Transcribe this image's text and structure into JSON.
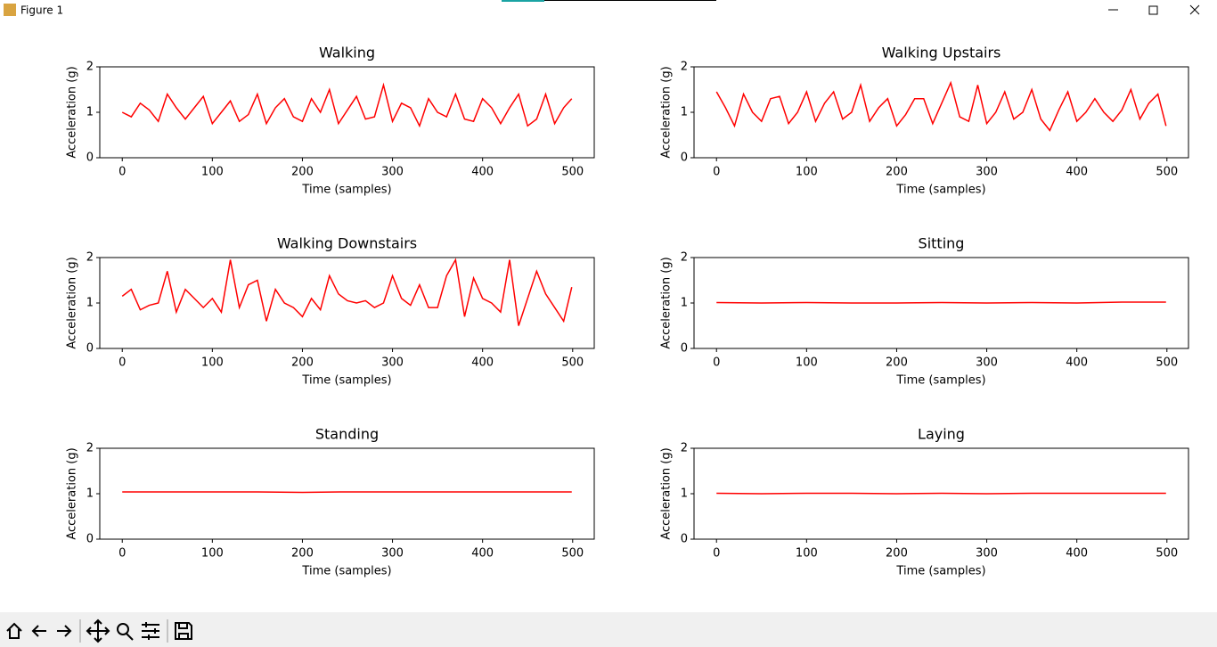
{
  "window": {
    "title": "Figure 1"
  },
  "chart_data": [
    {
      "type": "line",
      "title": "Walking",
      "xlabel": "Time (samples)",
      "ylabel": "Acceleration (g)",
      "color": "#ff0000",
      "x": [
        0,
        10,
        20,
        30,
        40,
        50,
        60,
        70,
        80,
        90,
        100,
        110,
        120,
        130,
        140,
        150,
        160,
        170,
        180,
        190,
        200,
        210,
        220,
        230,
        240,
        250,
        260,
        270,
        280,
        290,
        300,
        310,
        320,
        330,
        340,
        350,
        360,
        370,
        380,
        390,
        400,
        410,
        420,
        430,
        440,
        450,
        460,
        470,
        480,
        490,
        499
      ],
      "values": [
        1.0,
        0.9,
        1.2,
        1.05,
        0.8,
        1.4,
        1.1,
        0.85,
        1.1,
        1.35,
        0.75,
        1.0,
        1.25,
        0.8,
        0.95,
        1.4,
        0.75,
        1.1,
        1.3,
        0.9,
        0.8,
        1.3,
        1.0,
        1.5,
        0.75,
        1.05,
        1.35,
        0.85,
        0.9,
        1.6,
        0.8,
        1.2,
        1.1,
        0.7,
        1.3,
        1.0,
        0.9,
        1.4,
        0.85,
        0.8,
        1.3,
        1.1,
        0.75,
        1.1,
        1.4,
        0.7,
        0.85,
        1.4,
        0.75,
        1.1,
        1.3
      ],
      "xlim": [
        -24.95,
        523.95
      ],
      "ylim": [
        0,
        2
      ],
      "xticks": [
        0,
        100,
        200,
        300,
        400,
        500
      ],
      "yticks": [
        0,
        1,
        2
      ]
    },
    {
      "type": "line",
      "title": "Walking Upstairs",
      "xlabel": "Time (samples)",
      "ylabel": "Acceleration (g)",
      "color": "#ff0000",
      "x": [
        0,
        10,
        20,
        30,
        40,
        50,
        60,
        70,
        80,
        90,
        100,
        110,
        120,
        130,
        140,
        150,
        160,
        170,
        180,
        190,
        200,
        210,
        220,
        230,
        240,
        250,
        260,
        270,
        280,
        290,
        300,
        310,
        320,
        330,
        340,
        350,
        360,
        370,
        380,
        390,
        400,
        410,
        420,
        430,
        440,
        450,
        460,
        470,
        480,
        490,
        499
      ],
      "values": [
        1.45,
        1.1,
        0.7,
        1.4,
        1.0,
        0.8,
        1.3,
        1.35,
        0.75,
        1.0,
        1.45,
        0.8,
        1.2,
        1.45,
        0.85,
        1.0,
        1.6,
        0.8,
        1.1,
        1.3,
        0.7,
        0.95,
        1.3,
        1.3,
        0.75,
        1.2,
        1.65,
        0.9,
        0.8,
        1.6,
        0.75,
        1.0,
        1.45,
        0.85,
        1.0,
        1.5,
        0.85,
        0.6,
        1.05,
        1.45,
        0.8,
        1.0,
        1.3,
        1.0,
        0.8,
        1.05,
        1.5,
        0.85,
        1.2,
        1.4,
        0.7
      ],
      "xlim": [
        -24.95,
        523.95
      ],
      "ylim": [
        0,
        2
      ],
      "xticks": [
        0,
        100,
        200,
        300,
        400,
        500
      ],
      "yticks": [
        0,
        1,
        2
      ]
    },
    {
      "type": "line",
      "title": "Walking Downstairs",
      "xlabel": "Time (samples)",
      "ylabel": "Acceleration (g)",
      "color": "#ff0000",
      "x": [
        0,
        10,
        20,
        30,
        40,
        50,
        60,
        70,
        80,
        90,
        100,
        110,
        120,
        130,
        140,
        150,
        160,
        170,
        180,
        190,
        200,
        210,
        220,
        230,
        240,
        250,
        260,
        270,
        280,
        290,
        300,
        310,
        320,
        330,
        340,
        350,
        360,
        370,
        380,
        390,
        400,
        410,
        420,
        430,
        440,
        450,
        460,
        470,
        480,
        490,
        499
      ],
      "values": [
        1.15,
        1.3,
        0.85,
        0.95,
        1.0,
        1.7,
        0.8,
        1.3,
        1.1,
        0.9,
        1.1,
        0.8,
        1.95,
        0.9,
        1.4,
        1.5,
        0.6,
        1.3,
        1.0,
        0.9,
        0.7,
        1.1,
        0.85,
        1.6,
        1.2,
        1.05,
        1.0,
        1.05,
        0.9,
        1.0,
        1.6,
        1.1,
        0.95,
        1.4,
        0.9,
        0.9,
        1.6,
        1.95,
        0.7,
        1.55,
        1.1,
        1.0,
        0.8,
        1.95,
        0.5,
        1.1,
        1.7,
        1.2,
        0.9,
        0.6,
        1.35
      ],
      "xlim": [
        -24.95,
        523.95
      ],
      "ylim": [
        0,
        2
      ],
      "xticks": [
        0,
        100,
        200,
        300,
        400,
        500
      ],
      "yticks": [
        0,
        1,
        2
      ]
    },
    {
      "type": "line",
      "title": "Sitting",
      "xlabel": "Time (samples)",
      "ylabel": "Acceleration (g)",
      "color": "#ff0000",
      "x": [
        0,
        50,
        100,
        150,
        200,
        250,
        300,
        350,
        400,
        450,
        499
      ],
      "values": [
        1.01,
        1.0,
        1.01,
        1.0,
        1.0,
        1.01,
        1.0,
        1.01,
        1.0,
        1.02,
        1.02
      ],
      "xlim": [
        -24.95,
        523.95
      ],
      "ylim": [
        0,
        2
      ],
      "xticks": [
        0,
        100,
        200,
        300,
        400,
        500
      ],
      "yticks": [
        0,
        1,
        2
      ]
    },
    {
      "type": "line",
      "title": "Standing",
      "xlabel": "Time (samples)",
      "ylabel": "Acceleration (g)",
      "color": "#ff0000",
      "x": [
        0,
        50,
        100,
        150,
        200,
        250,
        300,
        350,
        400,
        450,
        499
      ],
      "values": [
        1.04,
        1.04,
        1.04,
        1.04,
        1.03,
        1.04,
        1.04,
        1.04,
        1.04,
        1.04,
        1.04
      ],
      "xlim": [
        -24.95,
        523.95
      ],
      "ylim": [
        0,
        2
      ],
      "xticks": [
        0,
        100,
        200,
        300,
        400,
        500
      ],
      "yticks": [
        0,
        1,
        2
      ]
    },
    {
      "type": "line",
      "title": "Laying",
      "xlabel": "Time (samples)",
      "ylabel": "Acceleration (g)",
      "color": "#ff0000",
      "x": [
        0,
        50,
        100,
        150,
        200,
        250,
        300,
        350,
        400,
        450,
        499
      ],
      "values": [
        1.01,
        1.0,
        1.01,
        1.01,
        1.0,
        1.01,
        1.0,
        1.01,
        1.01,
        1.01,
        1.01
      ],
      "xlim": [
        -24.95,
        523.95
      ],
      "ylim": [
        0,
        2
      ],
      "xticks": [
        0,
        100,
        200,
        300,
        400,
        500
      ],
      "yticks": [
        0,
        1,
        2
      ]
    }
  ]
}
